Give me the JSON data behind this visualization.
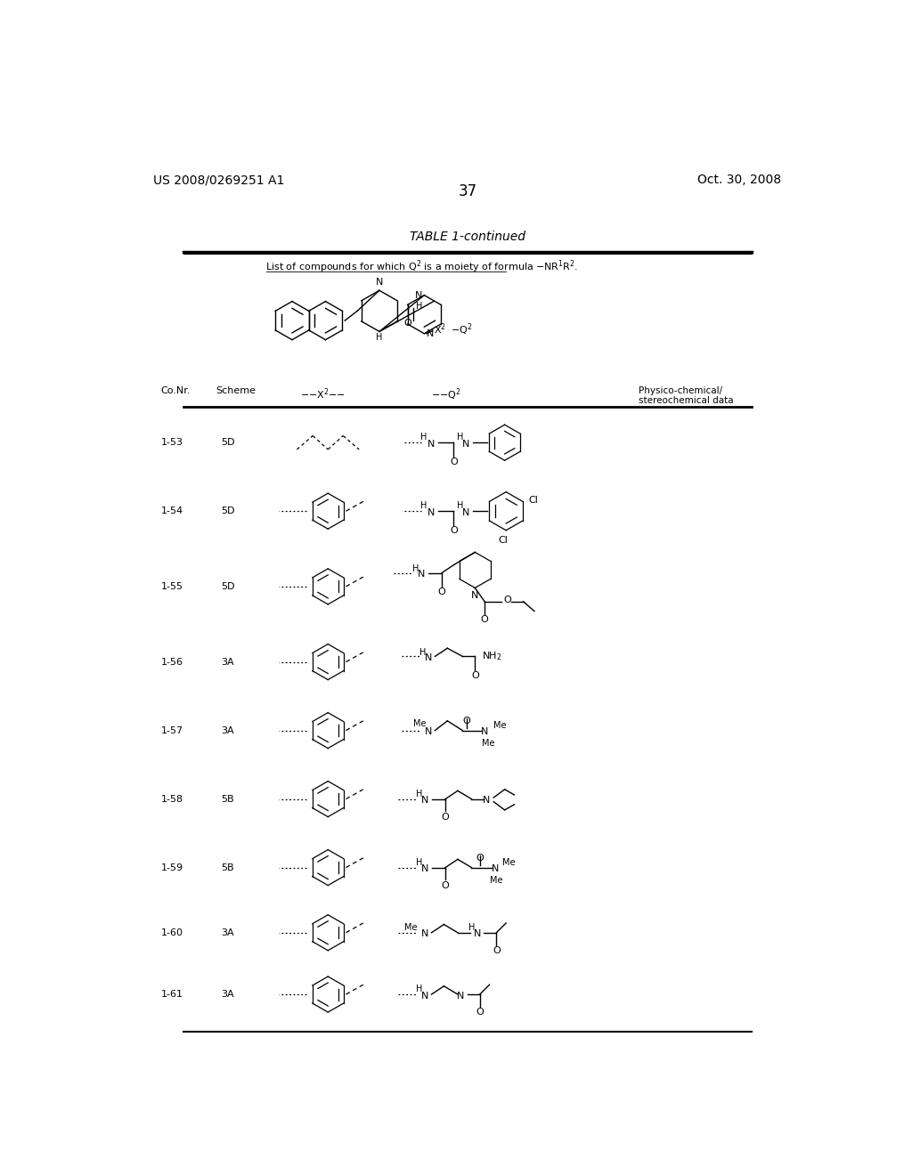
{
  "page_number": "37",
  "patent_number": "US 2008/0269251 A1",
  "patent_date": "Oct. 30, 2008",
  "table_title": "TABLE 1-continued",
  "table_subtitle": "List of compounds for which Q² is a moiety of formula —NR¹R².",
  "col_headers": [
    "Co.Nr.",
    "Scheme",
    "--X²--",
    "--Q²",
    "Physico-chemical/\nstereochemical data"
  ],
  "rows": [
    {
      "id": "1-53",
      "scheme": "5D"
    },
    {
      "id": "1-54",
      "scheme": "5D"
    },
    {
      "id": "1-55",
      "scheme": "5D"
    },
    {
      "id": "1-56",
      "scheme": "3A"
    },
    {
      "id": "1-57",
      "scheme": "3A"
    },
    {
      "id": "1-58",
      "scheme": "5B"
    },
    {
      "id": "1-59",
      "scheme": "5B"
    },
    {
      "id": "1-60",
      "scheme": "3A"
    },
    {
      "id": "1-61",
      "scheme": "3A"
    }
  ],
  "background_color": "#ffffff",
  "text_color": "#000000"
}
